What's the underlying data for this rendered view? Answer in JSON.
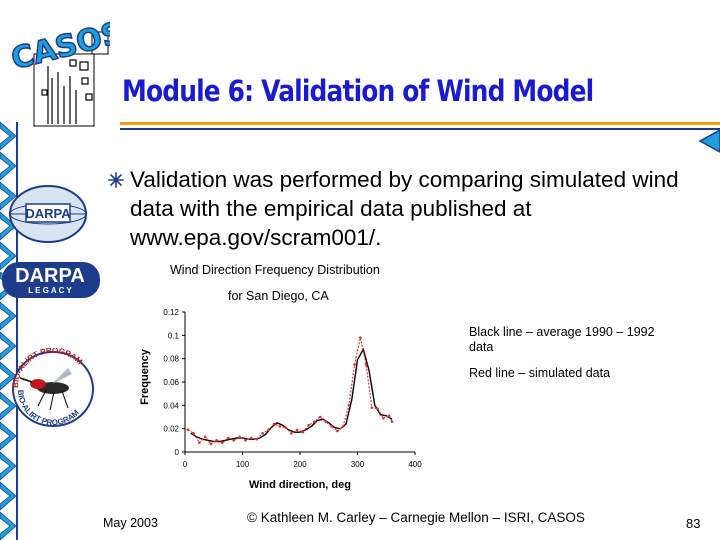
{
  "slide": {
    "logo_text": "CASOS",
    "title": "Module 6: Validation of Wind Model",
    "bullet": "Validation was performed by comparing simulated wind data with the empirical data published at www.epa.gov/scram001/.",
    "chart_title_line1": "Wind Direction Frequency Distribution",
    "chart_title_line2": "for San Diego, CA",
    "annotation_black": "Black line – average 1990 – 1992 data",
    "annotation_red": "Red line – simulated data",
    "footer_date": "May 2003",
    "footer_copyright": "© Kathleen M. Carley – Carnegie Mellon – ISRI, CASOS",
    "page_number": "83",
    "sidebar_logos": {
      "darpa_globe": "DARPA",
      "darpa_legacy_top": "DARPA",
      "darpa_legacy_bottom": "L E G A C Y",
      "bio_alirt_top": "BIO-ALIRT PROGRAM",
      "bio_alirt_bottom": "BIO-ALIRT PROGRAM"
    },
    "colors": {
      "title": "#1a1ad2",
      "strip_blue": "#1ea0dc",
      "strip_dark": "#1e3c8c",
      "accent_orange": "#f0a000",
      "simulated": "#e03030",
      "average": "#000000"
    }
  },
  "chart_data": {
    "type": "line",
    "title": "",
    "xlabel": "Wind direction, deg",
    "ylabel": "Frequency",
    "xlim": [
      0,
      400
    ],
    "ylim": [
      0,
      0.12
    ],
    "xticks": [
      "0",
      "100",
      "200",
      "300",
      "400"
    ],
    "yticks": [
      "0",
      "0.02",
      "0.04",
      "0.06",
      "0.08",
      "0.1",
      "0.12"
    ],
    "grid": false,
    "series": [
      {
        "x": [
          10,
          20,
          30,
          40,
          50,
          60,
          70,
          80,
          90,
          100,
          110,
          120,
          130,
          140,
          150,
          160,
          170,
          180,
          190,
          200,
          210,
          220,
          230,
          240,
          250,
          260,
          270,
          280,
          290,
          300,
          310,
          320,
          330,
          340,
          350,
          360
        ],
        "y": [
          0.016,
          0.013,
          0.011,
          0.01,
          0.009,
          0.009,
          0.01,
          0.011,
          0.012,
          0.012,
          0.011,
          0.011,
          0.012,
          0.015,
          0.021,
          0.025,
          0.023,
          0.019,
          0.017,
          0.017,
          0.019,
          0.022,
          0.027,
          0.028,
          0.025,
          0.021,
          0.02,
          0.024,
          0.045,
          0.079,
          0.088,
          0.07,
          0.04,
          0.032,
          0.031,
          0.028
        ]
      },
      {
        "x": [
          5,
          15,
          25,
          35,
          45,
          55,
          65,
          75,
          85,
          95,
          105,
          115,
          125,
          135,
          145,
          155,
          165,
          175,
          185,
          195,
          205,
          215,
          225,
          235,
          245,
          255,
          265,
          275,
          285,
          295,
          305,
          315,
          325,
          335,
          345,
          355,
          360
        ],
        "y": [
          0.019,
          0.016,
          0.008,
          0.013,
          0.007,
          0.01,
          0.008,
          0.012,
          0.01,
          0.013,
          0.01,
          0.012,
          0.011,
          0.016,
          0.019,
          0.024,
          0.022,
          0.021,
          0.016,
          0.019,
          0.017,
          0.023,
          0.026,
          0.03,
          0.026,
          0.022,
          0.018,
          0.022,
          0.04,
          0.075,
          0.098,
          0.075,
          0.038,
          0.037,
          0.029,
          0.031,
          0.026
        ]
      }
    ]
  }
}
